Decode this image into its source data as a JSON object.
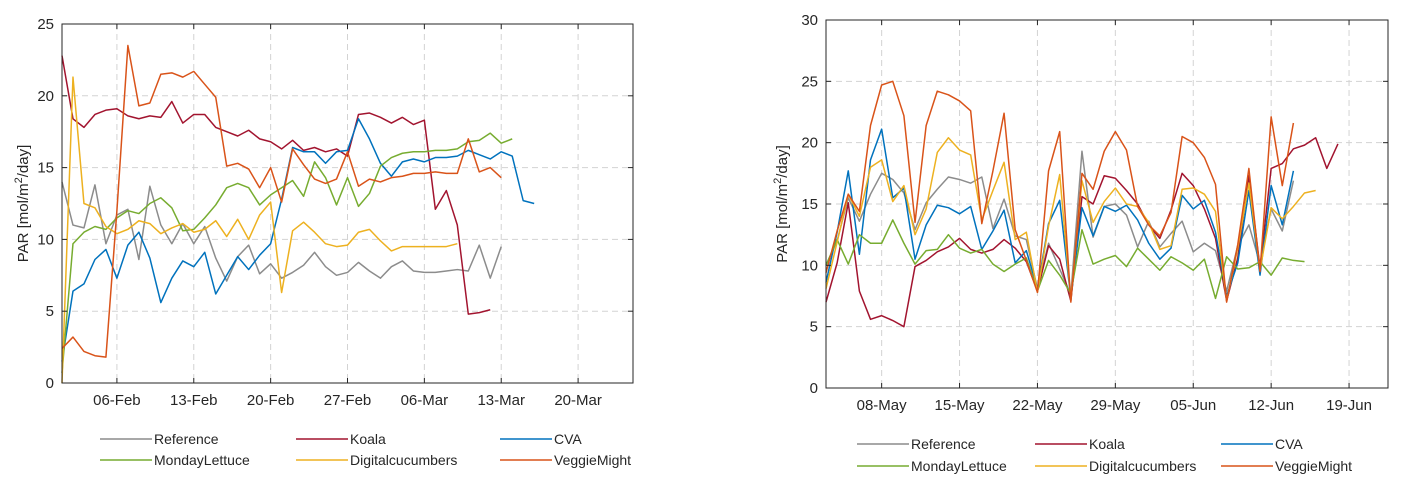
{
  "colors": {
    "Reference": "#8c8c8c",
    "Koala": "#a2142f",
    "CVA": "#0072bd",
    "MondayLettuce": "#77ac30",
    "Digitalcucumbers": "#edb120",
    "VeggieMight": "#d95319"
  },
  "chart_data": [
    {
      "type": "line",
      "title": "",
      "xlabel": "",
      "ylabel_html": {
        "pre": "PAR [mol/m",
        "sup": "2",
        "post": "/day]"
      },
      "x_start": "2023-02-01",
      "xlim": [
        0,
        52
      ],
      "ylim": [
        0,
        25
      ],
      "y_ticks": [
        0,
        5,
        10,
        15,
        20,
        25
      ],
      "x_ticks": [
        {
          "label": "06-Feb",
          "x": 5
        },
        {
          "label": "13-Feb",
          "x": 12
        },
        {
          "label": "20-Feb",
          "x": 19
        },
        {
          "label": "27-Feb",
          "x": 26
        },
        {
          "label": "06-Mar",
          "x": 33
        },
        {
          "label": "13-Mar",
          "x": 40
        },
        {
          "label": "20-Mar",
          "x": 47
        }
      ],
      "grid": true,
      "legend": "bottom",
      "series": [
        {
          "name": "Reference",
          "x0": 0,
          "values": [
            14,
            11,
            10.8,
            13.8,
            9.7,
            11.7,
            12.1,
            8.6,
            13.7,
            11,
            9.7,
            11.1,
            9.7,
            10.9,
            8.7,
            7.1,
            8.8,
            9.6,
            7.6,
            8.3,
            7.3,
            7.7,
            8.2,
            9.1,
            8.1,
            7.5,
            7.7,
            8.4,
            7.8,
            7.3,
            8.1,
            8.5,
            7.8,
            7.7,
            7.7,
            7.8,
            7.9,
            7.8,
            9.6,
            7.3,
            9.5
          ]
        },
        {
          "name": "Koala",
          "x0": 0,
          "values": [
            22.8,
            18.4,
            17.8,
            18.7,
            19,
            19.1,
            18.6,
            18.4,
            18.6,
            18.5,
            19.6,
            18.1,
            18.7,
            18.7,
            17.8,
            17.5,
            17.2,
            17.6,
            17,
            16.8,
            16.3,
            16.9,
            16.2,
            16.4,
            16.1,
            16.3,
            15.8,
            18.7,
            18.8,
            18.5,
            18.1,
            18.5,
            18,
            18.3,
            12.1,
            13.4,
            11,
            4.8,
            4.9,
            5.1
          ]
        },
        {
          "name": "CVA",
          "x0": 0,
          "values": [
            1.5,
            6.4,
            6.9,
            8.6,
            9.3,
            7.3,
            9.6,
            10.5,
            8.7,
            5.6,
            7.3,
            8.5,
            8.1,
            9.1,
            6.2,
            7.5,
            8.8,
            7.9,
            8.9,
            9.7,
            12.8,
            16.4,
            16.1,
            16.1,
            15.3,
            16.1,
            16.2,
            18.4,
            17,
            15.3,
            14.4,
            15.4,
            15.6,
            15.4,
            15.7,
            15.7,
            15.8,
            16.2,
            15.9,
            15.6,
            16.1,
            15.8,
            12.7,
            12.5
          ]
        },
        {
          "name": "MondayLettuce",
          "x0": 0,
          "values": [
            0.7,
            9.7,
            10.5,
            10.9,
            10.7,
            11.5,
            12,
            11.8,
            12.5,
            12.9,
            12.2,
            10.6,
            10.7,
            11.5,
            12.4,
            13.6,
            13.9,
            13.6,
            12.4,
            13.1,
            13.6,
            14.1,
            13,
            15.4,
            14.3,
            12.4,
            14.3,
            12.3,
            13.2,
            15.1,
            15.7,
            16,
            16.1,
            16.1,
            16.2,
            16.2,
            16.3,
            16.8,
            16.9,
            17.4,
            16.7,
            17
          ]
        },
        {
          "name": "Digitalcucumbers",
          "x0": 0,
          "values": [
            0,
            21.3,
            12.5,
            12.2,
            10.9,
            10.4,
            10.7,
            11.3,
            11.1,
            10.4,
            10.8,
            11.1,
            10.5,
            10.7,
            11.3,
            10.2,
            11.4,
            10,
            11.7,
            12.6,
            6.3,
            10.6,
            11.2,
            10.5,
            9.7,
            9.5,
            9.6,
            10.5,
            10.7,
            9.9,
            9.2,
            9.5,
            9.5,
            9.5,
            9.5,
            9.5,
            9.7
          ]
        },
        {
          "name": "VeggieMight",
          "x0": 0,
          "values": [
            2.4,
            3.2,
            2.2,
            1.9,
            1.8,
            12,
            23.5,
            19.3,
            19.5,
            21.5,
            21.6,
            21.3,
            21.7,
            20.8,
            19.9,
            15.1,
            15.3,
            14.9,
            13.6,
            15,
            12.6,
            16.3,
            15.2,
            14.2,
            13.9,
            14.2,
            16.1,
            13.7,
            14.2,
            14,
            14.3,
            14.4,
            14.6,
            14.6,
            14.7,
            14.6,
            14.6,
            17,
            14.7,
            15,
            14.3
          ]
        }
      ]
    },
    {
      "type": "line",
      "title": "",
      "xlabel": "",
      "ylabel_html": {
        "pre": "PAR [mol/m",
        "sup": "2",
        "post": "/day]"
      },
      "x_start": "2023-05-03",
      "xlim": [
        0,
        50.5
      ],
      "ylim": [
        0,
        30
      ],
      "y_ticks": [
        0,
        5,
        10,
        15,
        20,
        25,
        30
      ],
      "x_ticks": [
        {
          "label": "08-May",
          "x": 5
        },
        {
          "label": "15-May",
          "x": 12
        },
        {
          "label": "22-May",
          "x": 19
        },
        {
          "label": "29-May",
          "x": 26
        },
        {
          "label": "05-Jun",
          "x": 33
        },
        {
          "label": "12-Jun",
          "x": 40
        },
        {
          "label": "19-Jun",
          "x": 47
        }
      ],
      "grid": true,
      "legend": "bottom",
      "series": [
        {
          "name": "Reference",
          "x0": 0,
          "values": [
            10,
            12,
            15.5,
            13.6,
            15.8,
            17.5,
            17,
            15.9,
            12.9,
            15.1,
            16.2,
            17.2,
            17,
            16.7,
            17.2,
            13,
            15.4,
            12.4,
            12.1,
            8.1,
            11.8,
            9.7,
            7.6,
            19.3,
            12.3,
            14.8,
            15,
            14.1,
            11.5,
            13.6,
            11.5,
            12.6,
            13.6,
            11.1,
            11.8,
            11.2,
            7.9,
            11.6,
            13.3,
            10.1,
            14.6,
            12.8,
            16.9
          ]
        },
        {
          "name": "Koala",
          "x0": 0,
          "values": [
            7,
            10.2,
            15.1,
            7.9,
            5.6,
            5.9,
            5.5,
            5,
            9.9,
            10.4,
            11.1,
            11.5,
            12.2,
            11.3,
            11,
            11.3,
            12.1,
            11.4,
            10.3,
            7.9,
            11.6,
            10.5,
            7.1,
            15.6,
            15,
            17.3,
            17.1,
            16.1,
            15,
            13.3,
            12.2,
            14.5,
            17.5,
            16.5,
            14.6,
            12.2,
            7.1,
            10.6,
            17.3,
            9.8,
            17.9,
            18.3,
            19.5,
            19.8,
            20.4,
            17.9,
            19.9
          ]
        },
        {
          "name": "CVA",
          "x0": 0,
          "values": [
            8.6,
            12.7,
            17.7,
            10.9,
            18.6,
            21.1,
            15.5,
            16.3,
            10.5,
            13.3,
            14.9,
            14.7,
            14.2,
            14.8,
            11.3,
            12.8,
            14.5,
            10.2,
            11.2,
            8.1,
            13.4,
            15.3,
            7.3,
            14.7,
            12.4,
            14.8,
            14.4,
            14.9,
            13.7,
            11.8,
            10.5,
            11.4,
            15.7,
            14.6,
            15.3,
            12.7,
            7.5,
            10.2,
            16.1,
            9.2,
            16.5,
            13.3,
            17.7
          ]
        },
        {
          "name": "MondayLettuce",
          "x0": 0,
          "values": [
            10,
            12.1,
            10.1,
            12.5,
            11.8,
            11.8,
            13.7,
            11.8,
            10.1,
            11.2,
            11.3,
            12.5,
            11.4,
            11,
            11.3,
            10.1,
            9.5,
            10.1,
            10.6,
            7.9,
            10.4,
            9.2,
            7.7,
            12.9,
            10.1,
            10.5,
            10.8,
            9.9,
            11.4,
            10.5,
            9.6,
            10.7,
            10.2,
            9.6,
            10.5,
            7.3,
            10.7,
            9.7,
            9.8,
            10.3,
            9.2,
            10.6,
            10.4,
            10.3
          ]
        },
        {
          "name": "Digitalcucumbers",
          "x0": 0,
          "values": [
            8.1,
            11.9,
            15.8,
            14,
            18,
            18.6,
            15.2,
            16.5,
            12.5,
            14.6,
            19.2,
            20.4,
            19.4,
            19,
            13.7,
            16.1,
            18.4,
            12.1,
            12.7,
            7.8,
            13.2,
            17.4,
            7.2,
            16.9,
            13.5,
            15.2,
            16.3,
            15,
            14.8,
            13.5,
            11.3,
            11.6,
            16.2,
            16.3,
            15.8,
            14.4,
            7.1,
            11.4,
            16.7,
            9.6,
            14.7,
            13.8,
            14.8,
            15.9,
            16.1
          ]
        },
        {
          "name": "VeggieMight",
          "x0": 0,
          "values": [
            9.4,
            12.8,
            15.8,
            14.4,
            21.4,
            24.7,
            25,
            22.2,
            13.5,
            21.4,
            24.2,
            23.9,
            23.4,
            22.6,
            13.4,
            17.7,
            22.4,
            12.9,
            10.4,
            7.8,
            17.7,
            20.9,
            7,
            17.5,
            16.2,
            19.3,
            20.9,
            19.4,
            14.8,
            13.3,
            12.4,
            14.3,
            20.5,
            20,
            18.8,
            16.6,
            7,
            11.7,
            17.9,
            9.5,
            22.1,
            16.5,
            21.6
          ]
        }
      ]
    }
  ]
}
